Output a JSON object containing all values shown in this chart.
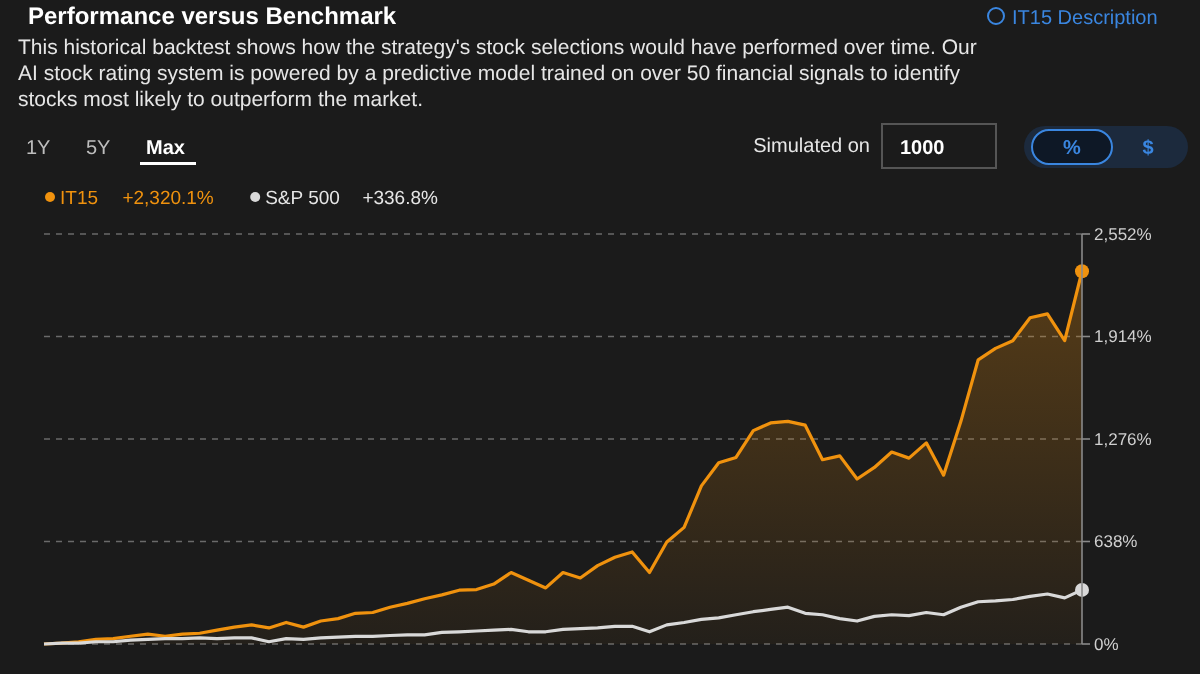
{
  "chart_data": {
    "type": "line",
    "title": "Performance versus Benchmark",
    "subtitle": "This historical backtest shows how the strategy's stock selections would have performed over time. Our AI stock rating system is powered by a predictive model trained on over 50 financial signals to identify stocks most likely to outperform the market.",
    "annotations": [
      "IT15 Description",
      "1Y",
      "5Y",
      "Max",
      "Simulated on",
      "1000",
      "%",
      "$",
      "+2,320.1%",
      "+336.8%"
    ],
    "categories": [
      null,
      null,
      null,
      null,
      null,
      null,
      null,
      null,
      null,
      null,
      null,
      null,
      null,
      null,
      null,
      null,
      null,
      null,
      null,
      null,
      null,
      null,
      null,
      null,
      null,
      null,
      null,
      null,
      null,
      null,
      null,
      null,
      null,
      null,
      null,
      null,
      null,
      null,
      null,
      null,
      null,
      null,
      null,
      null,
      null,
      null,
      null,
      null,
      null,
      null,
      null,
      null,
      null,
      null,
      null,
      null,
      null,
      null,
      null,
      null,
      null
    ],
    "ylim": [
      0,
      2552
    ],
    "yticks": [
      {
        "value": 0,
        "label": "0%"
      },
      {
        "value": 638,
        "label": "638%"
      },
      {
        "value": 1276,
        "label": "1,276%"
      },
      {
        "value": 1914,
        "label": "1,914%"
      },
      {
        "value": 2552,
        "label": "2,552%"
      }
    ],
    "grid": "y",
    "legend": "top left",
    "line_style": "solid",
    "series": [
      {
        "name": "IT15",
        "type": "area",
        "color": "#f0920e",
        "values": [
          0,
          5,
          14,
          29,
          33,
          48,
          62,
          48,
          62,
          67,
          86,
          105,
          119,
          100,
          134,
          105,
          143,
          158,
          191,
          196,
          229,
          253,
          282,
          306,
          335,
          339,
          373,
          445,
          397,
          349,
          445,
          411,
          488,
          540,
          573,
          445,
          635,
          726,
          984,
          1128,
          1161,
          1328,
          1376,
          1386,
          1362,
          1147,
          1171,
          1027,
          1099,
          1195,
          1157,
          1252,
          1051,
          1386,
          1769,
          1840,
          1888,
          2031,
          2055,
          1888,
          2320.1
        ]
      },
      {
        "name": "S&P 500",
        "color": "#d9d9d9",
        "values": [
          0,
          5,
          5,
          14,
          14,
          24,
          29,
          33,
          33,
          38,
          33,
          38,
          38,
          14,
          33,
          29,
          38,
          43,
          48,
          48,
          53,
          57,
          57,
          72,
          76,
          81,
          86,
          91,
          76,
          76,
          91,
          96,
          100,
          110,
          110,
          76,
          119,
          134,
          153,
          163,
          182,
          201,
          215,
          229,
          191,
          182,
          158,
          143,
          172,
          182,
          177,
          196,
          182,
          229,
          263,
          268,
          277,
          296,
          311,
          287,
          336.8
        ]
      }
    ]
  }
}
